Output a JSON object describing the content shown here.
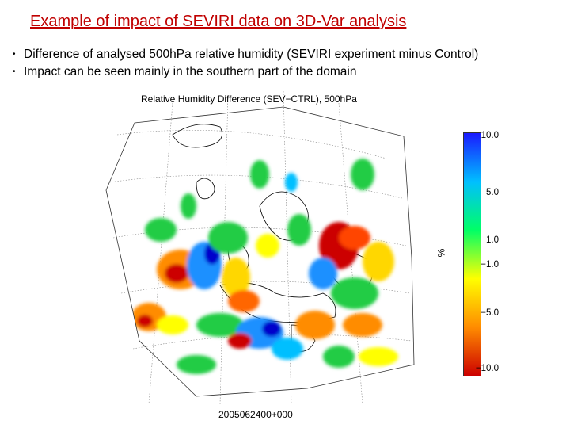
{
  "title": "Example of impact of SEVIRI data on 3D-Var analysis",
  "bullets": [
    "Difference of analysed 500hPa relative humidity (SEVIRI experiment minus Control)",
    "Impact can be seen mainly in the southern part of the domain"
  ],
  "map": {
    "title": "Relative Humidity Difference (SEV−CTRL), 500hPa",
    "date_label": "2005062400+000"
  },
  "colorbar": {
    "unit": "%",
    "ticks": [
      "10.0",
      "5.0",
      "1.0",
      "−1.0",
      "−5.0",
      "−10.0"
    ],
    "colors": [
      "#1a1aff",
      "#00bfff",
      "#00ff66",
      "#ffff00",
      "#ff8c00",
      "#cc0000"
    ]
  }
}
